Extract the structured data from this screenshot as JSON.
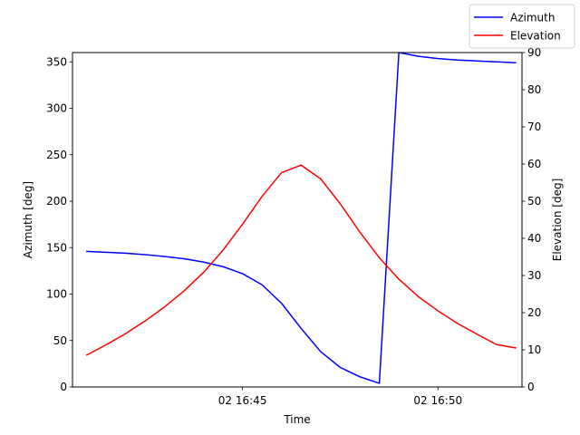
{
  "chart_data": {
    "type": "line",
    "xlabel": "Time",
    "ylabel": "Azimuth [deg]",
    "y2label": "Elevation [deg]",
    "x_tick_labels": [
      "02 16:45",
      "02 16:50"
    ],
    "x_tick_minutes": [
      45,
      50
    ],
    "x_range_minutes": [
      40.65,
      52.15
    ],
    "ylim": [
      0,
      360
    ],
    "yticks": [
      0,
      50,
      100,
      150,
      200,
      250,
      300,
      350
    ],
    "y2lim": [
      0,
      90
    ],
    "y2ticks": [
      0,
      10,
      20,
      30,
      40,
      50,
      60,
      70,
      80,
      90
    ],
    "grid": false,
    "legend_position": "top-right",
    "x_minutes": [
      41.0,
      41.5,
      42.0,
      42.5,
      43.0,
      43.5,
      44.0,
      44.5,
      45.0,
      45.5,
      46.0,
      46.5,
      47.0,
      47.5,
      48.0,
      48.5,
      49.0,
      49.5,
      50.0,
      50.5,
      51.0,
      51.5,
      52.0
    ],
    "series": [
      {
        "name": "Azimuth",
        "axis": "left",
        "color": "#0000ff",
        "values": [
          146,
          145,
          144,
          142.5,
          140.5,
          138,
          134.5,
          129.5,
          122,
          110,
          90,
          63,
          38,
          21,
          11,
          4,
          360,
          356,
          353.5,
          352,
          351,
          350,
          349
        ]
      },
      {
        "name": "Elevation",
        "axis": "right",
        "color": "#ff0000",
        "values": [
          8.5,
          11.3,
          14.3,
          17.7,
          21.5,
          25.8,
          30.8,
          36.8,
          43.8,
          51.3,
          57.7,
          59.7,
          56,
          49.3,
          41.7,
          34.8,
          29,
          24.3,
          20.5,
          17.1,
          14.2,
          11.4,
          10.5
        ]
      }
    ]
  }
}
